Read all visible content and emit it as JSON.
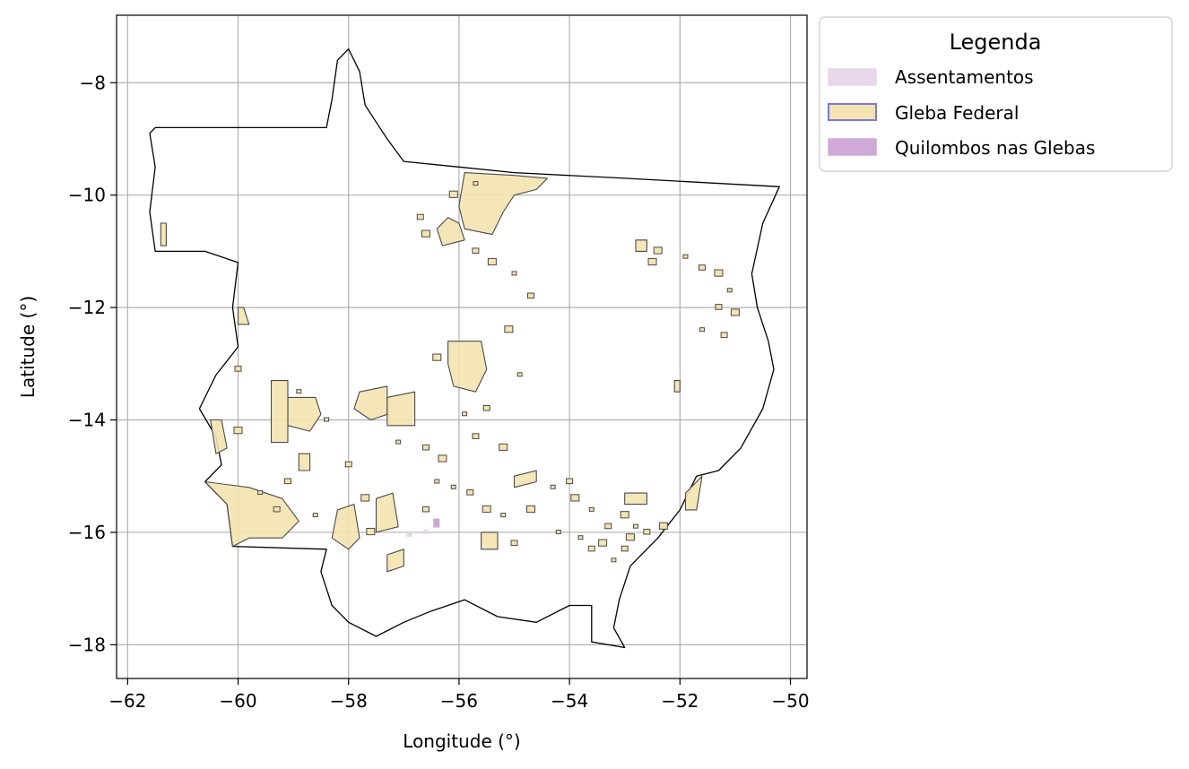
{
  "chart_data": {
    "type": "map",
    "xlabel": "Longitude (°)",
    "ylabel": "Latitude (°)",
    "xlim": [
      -62.2,
      -49.7
    ],
    "ylim": [
      -18.6,
      -6.8
    ],
    "grid": true,
    "x_ticks": [
      {
        "value": -62,
        "label": "−62"
      },
      {
        "value": -60,
        "label": "−60"
      },
      {
        "value": -58,
        "label": "−58"
      },
      {
        "value": -56,
        "label": "−56"
      },
      {
        "value": -54,
        "label": "−54"
      },
      {
        "value": -52,
        "label": "−52"
      },
      {
        "value": -50,
        "label": "−50"
      }
    ],
    "y_ticks": [
      {
        "value": -8,
        "label": "−8"
      },
      {
        "value": -10,
        "label": "−10"
      },
      {
        "value": -12,
        "label": "−12"
      },
      {
        "value": -14,
        "label": "−14"
      },
      {
        "value": -16,
        "label": "−16"
      },
      {
        "value": -18,
        "label": "−18"
      }
    ],
    "legend": {
      "title": "Legenda",
      "placement": "outside-top-right",
      "entries": [
        {
          "label": "Assentamentos",
          "fill": "#e8d6eb",
          "edge": "#e8d6eb"
        },
        {
          "label": "Gleba Federal",
          "fill": "#f4e3b0",
          "edge": "#7a7ad8"
        },
        {
          "label": "Quilombos nas Glebas",
          "fill": "#cfaad6",
          "edge": "#cfaad6"
        }
      ]
    },
    "layers": {
      "state_boundary": {
        "edge": "#000000",
        "points": [
          [
            -61.5,
            -8.8
          ],
          [
            -58.4,
            -8.8
          ],
          [
            -58.3,
            -8.3
          ],
          [
            -58.2,
            -7.6
          ],
          [
            -58.0,
            -7.4
          ],
          [
            -57.8,
            -7.8
          ],
          [
            -57.7,
            -8.4
          ],
          [
            -57.5,
            -8.7
          ],
          [
            -57.3,
            -9.0
          ],
          [
            -57.0,
            -9.4
          ],
          [
            -55.0,
            -9.6
          ],
          [
            -53.0,
            -9.7
          ],
          [
            -50.2,
            -9.85
          ],
          [
            -50.5,
            -10.5
          ],
          [
            -50.7,
            -11.4
          ],
          [
            -50.6,
            -12.0
          ],
          [
            -50.4,
            -12.6
          ],
          [
            -50.3,
            -13.1
          ],
          [
            -50.5,
            -13.8
          ],
          [
            -50.9,
            -14.5
          ],
          [
            -51.3,
            -14.9
          ],
          [
            -51.7,
            -15.0
          ],
          [
            -52.0,
            -15.6
          ],
          [
            -52.4,
            -16.1
          ],
          [
            -52.9,
            -16.6
          ],
          [
            -53.1,
            -17.2
          ],
          [
            -53.2,
            -17.7
          ],
          [
            -53.0,
            -18.05
          ],
          [
            -53.6,
            -17.95
          ],
          [
            -53.6,
            -17.3
          ],
          [
            -54.0,
            -17.3
          ],
          [
            -54.6,
            -17.6
          ],
          [
            -55.3,
            -17.5
          ],
          [
            -55.9,
            -17.2
          ],
          [
            -56.5,
            -17.4
          ],
          [
            -57.0,
            -17.6
          ],
          [
            -57.5,
            -17.85
          ],
          [
            -58.0,
            -17.6
          ],
          [
            -58.3,
            -17.3
          ],
          [
            -58.5,
            -16.7
          ],
          [
            -58.4,
            -16.3
          ],
          [
            -60.1,
            -16.25
          ],
          [
            -60.2,
            -15.5
          ],
          [
            -60.6,
            -15.1
          ],
          [
            -60.3,
            -14.8
          ],
          [
            -60.4,
            -14.3
          ],
          [
            -60.7,
            -13.8
          ],
          [
            -60.4,
            -13.2
          ],
          [
            -60.0,
            -12.7
          ],
          [
            -60.1,
            -12.0
          ],
          [
            -60.0,
            -11.2
          ],
          [
            -60.6,
            -11.0
          ],
          [
            -61.5,
            -11.0
          ],
          [
            -61.6,
            -10.3
          ],
          [
            -61.5,
            -9.5
          ],
          [
            -61.6,
            -8.9
          ]
        ]
      },
      "gleba_federal": {
        "fill": "#f4e3b0",
        "edge": "#4a4a4a",
        "polygons": [
          [
            [
              -55.9,
              -9.6
            ],
            [
              -55.0,
              -9.65
            ],
            [
              -54.4,
              -9.7
            ],
            [
              -54.6,
              -9.9
            ],
            [
              -55.0,
              -10.0
            ],
            [
              -55.2,
              -10.3
            ],
            [
              -55.4,
              -10.7
            ],
            [
              -55.9,
              -10.6
            ],
            [
              -56.0,
              -10.2
            ]
          ],
          [
            [
              -56.2,
              -10.4
            ],
            [
              -56.0,
              -10.5
            ],
            [
              -55.9,
              -10.8
            ],
            [
              -56.3,
              -10.9
            ],
            [
              -56.4,
              -10.6
            ]
          ],
          [
            [
              -56.2,
              -12.6
            ],
            [
              -55.6,
              -12.6
            ],
            [
              -55.5,
              -13.1
            ],
            [
              -55.7,
              -13.5
            ],
            [
              -56.1,
              -13.4
            ],
            [
              -56.2,
              -13.0
            ]
          ],
          [
            [
              -57.8,
              -13.5
            ],
            [
              -57.3,
              -13.4
            ],
            [
              -57.3,
              -13.9
            ],
            [
              -57.6,
              -14.0
            ],
            [
              -57.9,
              -13.8
            ]
          ],
          [
            [
              -57.3,
              -13.6
            ],
            [
              -56.8,
              -13.5
            ],
            [
              -56.8,
              -14.1
            ],
            [
              -57.3,
              -14.1
            ]
          ],
          [
            [
              -59.1,
              -13.6
            ],
            [
              -58.6,
              -13.6
            ],
            [
              -58.5,
              -13.9
            ],
            [
              -58.7,
              -14.2
            ],
            [
              -59.1,
              -14.1
            ]
          ],
          [
            [
              -59.4,
              -13.3
            ],
            [
              -59.1,
              -13.3
            ],
            [
              -59.1,
              -14.4
            ],
            [
              -59.4,
              -14.4
            ]
          ],
          [
            [
              -58.9,
              -14.6
            ],
            [
              -58.7,
              -14.6
            ],
            [
              -58.7,
              -14.9
            ],
            [
              -58.9,
              -14.9
            ]
          ],
          [
            [
              -60.6,
              -15.1
            ],
            [
              -59.8,
              -15.2
            ],
            [
              -59.2,
              -15.4
            ],
            [
              -58.9,
              -15.8
            ],
            [
              -59.2,
              -16.1
            ],
            [
              -59.8,
              -16.1
            ],
            [
              -60.1,
              -16.25
            ],
            [
              -60.2,
              -15.5
            ]
          ],
          [
            [
              -58.2,
              -15.6
            ],
            [
              -57.9,
              -15.5
            ],
            [
              -57.8,
              -16.1
            ],
            [
              -58.0,
              -16.3
            ],
            [
              -58.3,
              -16.1
            ]
          ],
          [
            [
              -57.5,
              -15.4
            ],
            [
              -57.2,
              -15.3
            ],
            [
              -57.1,
              -15.9
            ],
            [
              -57.5,
              -16.0
            ]
          ],
          [
            [
              -57.3,
              -16.4
            ],
            [
              -57.0,
              -16.3
            ],
            [
              -57.0,
              -16.6
            ],
            [
              -57.3,
              -16.7
            ]
          ],
          [
            [
              -60.5,
              -14.0
            ],
            [
              -60.3,
              -14.0
            ],
            [
              -60.2,
              -14.5
            ],
            [
              -60.4,
              -14.6
            ]
          ],
          [
            [
              -61.4,
              -10.5
            ],
            [
              -61.3,
              -10.5
            ],
            [
              -61.3,
              -10.9
            ],
            [
              -61.4,
              -10.9
            ]
          ],
          [
            [
              -60.0,
              -12.0
            ],
            [
              -59.9,
              -12.0
            ],
            [
              -59.8,
              -12.3
            ],
            [
              -60.0,
              -12.3
            ]
          ],
          [
            [
              -55.0,
              -15.0
            ],
            [
              -54.6,
              -14.9
            ],
            [
              -54.6,
              -15.1
            ],
            [
              -55.0,
              -15.2
            ]
          ],
          [
            [
              -53.0,
              -15.3
            ],
            [
              -52.6,
              -15.3
            ],
            [
              -52.6,
              -15.5
            ],
            [
              -53.0,
              -15.5
            ]
          ],
          [
            [
              -51.9,
              -15.3
            ],
            [
              -51.6,
              -15.0
            ],
            [
              -51.7,
              -15.6
            ],
            [
              -51.9,
              -15.6
            ]
          ],
          [
            [
              -55.6,
              -16.0
            ],
            [
              -55.3,
              -16.0
            ],
            [
              -55.3,
              -16.3
            ],
            [
              -55.6,
              -16.3
            ]
          ],
          [
            [
              -52.8,
              -10.8
            ],
            [
              -52.6,
              -10.8
            ],
            [
              -52.6,
              -11.0
            ],
            [
              -52.8,
              -11.0
            ]
          ],
          [
            [
              -52.1,
              -13.3
            ],
            [
              -52.0,
              -13.3
            ],
            [
              -52.0,
              -13.5
            ],
            [
              -52.1,
              -13.5
            ]
          ]
        ],
        "dots": [
          [
            -58.4,
            -14.0
          ],
          [
            -58.0,
            -14.8
          ],
          [
            -57.7,
            -15.4
          ],
          [
            -57.1,
            -14.4
          ],
          [
            -56.6,
            -14.5
          ],
          [
            -56.3,
            -14.7
          ],
          [
            -56.1,
            -15.2
          ],
          [
            -55.8,
            -15.3
          ],
          [
            -55.5,
            -15.6
          ],
          [
            -55.2,
            -15.7
          ],
          [
            -55.0,
            -16.2
          ],
          [
            -54.7,
            -15.6
          ],
          [
            -54.3,
            -15.2
          ],
          [
            -54.0,
            -15.1
          ],
          [
            -53.9,
            -15.4
          ],
          [
            -53.6,
            -15.6
          ],
          [
            -53.3,
            -15.9
          ],
          [
            -53.0,
            -15.7
          ],
          [
            -52.8,
            -15.9
          ],
          [
            -52.6,
            -16.0
          ],
          [
            -52.3,
            -15.9
          ],
          [
            -53.8,
            -16.1
          ],
          [
            -53.6,
            -16.3
          ],
          [
            -53.4,
            -16.2
          ],
          [
            -53.2,
            -16.5
          ],
          [
            -53.0,
            -16.3
          ],
          [
            -52.9,
            -16.1
          ],
          [
            -54.2,
            -16.0
          ],
          [
            -55.7,
            -14.3
          ],
          [
            -55.2,
            -14.5
          ],
          [
            -56.4,
            -15.1
          ],
          [
            -56.6,
            -15.6
          ],
          [
            -57.6,
            -16.0
          ],
          [
            -58.6,
            -15.7
          ],
          [
            -59.1,
            -15.1
          ],
          [
            -56.4,
            -12.9
          ],
          [
            -55.9,
            -13.9
          ],
          [
            -55.5,
            -13.8
          ],
          [
            -55.1,
            -12.4
          ],
          [
            -54.9,
            -13.2
          ],
          [
            -55.7,
            -11.0
          ],
          [
            -55.4,
            -11.2
          ],
          [
            -55.0,
            -11.4
          ],
          [
            -54.7,
            -11.8
          ],
          [
            -52.4,
            -11.0
          ],
          [
            -51.9,
            -11.1
          ],
          [
            -51.6,
            -11.3
          ],
          [
            -51.3,
            -11.4
          ],
          [
            -51.1,
            -11.7
          ],
          [
            -51.3,
            -12.0
          ],
          [
            -51.0,
            -12.1
          ],
          [
            -51.6,
            -12.4
          ],
          [
            -51.2,
            -12.5
          ],
          [
            -52.5,
            -11.2
          ],
          [
            -58.9,
            -13.5
          ],
          [
            -60.0,
            -13.1
          ],
          [
            -60.0,
            -14.2
          ],
          [
            -59.6,
            -15.3
          ],
          [
            -59.3,
            -15.6
          ],
          [
            -56.1,
            -10.0
          ],
          [
            -55.7,
            -9.8
          ],
          [
            -56.7,
            -10.4
          ],
          [
            -56.6,
            -10.7
          ]
        ]
      },
      "assentamentos": {
        "fill": "#e8d6eb",
        "points": [
          [
            -56.9,
            -16.05
          ],
          [
            -56.6,
            -16.0
          ]
        ]
      },
      "quilombos": {
        "fill": "#cfaad6",
        "points": [
          [
            -56.4,
            -15.85
          ]
        ]
      }
    }
  }
}
